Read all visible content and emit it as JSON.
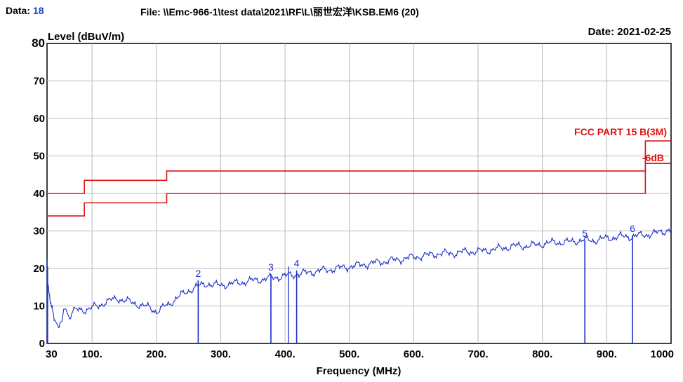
{
  "header": {
    "data_label": "Data:",
    "data_value": "18",
    "file_text": "File: \\\\Emc-966-1\\test data\\2021\\RF\\L\\丽世宏洋\\KSB.EM6  (20)",
    "date_text": "Date: 2021-02-25"
  },
  "colors": {
    "trace": "#1a2fc8",
    "limit": "#e01010",
    "grid": "#b8b8b8",
    "header_value": "#1a3fd0"
  },
  "chart_data": {
    "type": "line",
    "title": "",
    "ylabel": "Level (dBuV/m)",
    "xlabel": "Frequency (MHz)",
    "xlim": [
      30,
      1000
    ],
    "ylim": [
      0,
      80
    ],
    "grid": true,
    "x_ticks": [
      {
        "value": 30,
        "label": "30"
      },
      {
        "value": 100,
        "label": "100."
      },
      {
        "value": 200,
        "label": "200."
      },
      {
        "value": 300,
        "label": "300."
      },
      {
        "value": 400,
        "label": "400."
      },
      {
        "value": 500,
        "label": "500."
      },
      {
        "value": 600,
        "label": "600."
      },
      {
        "value": 700,
        "label": "700."
      },
      {
        "value": 800,
        "label": "800."
      },
      {
        "value": 900,
        "label": "900."
      },
      {
        "value": 1000,
        "label": "1000"
      }
    ],
    "y_ticks": [
      0,
      10,
      20,
      30,
      40,
      50,
      60,
      70,
      80
    ],
    "limit_lines": [
      {
        "x": [
          30,
          88,
          88,
          216,
          216,
          960,
          960,
          1000
        ],
        "y": [
          40,
          40,
          43.5,
          43.5,
          46,
          46,
          54,
          54
        ]
      },
      {
        "x": [
          30,
          88,
          88,
          216,
          216,
          960,
          960,
          1000
        ],
        "y": [
          34,
          34,
          37.5,
          37.5,
          40,
          40,
          48,
          48
        ]
      }
    ],
    "limit_labels": [
      "FCC PART 15 B(3M)",
      "-6dB"
    ],
    "series": [
      {
        "x": [
          30,
          32,
          34,
          36,
          38,
          40,
          42,
          45,
          48,
          50,
          53,
          56,
          60,
          65,
          70,
          80,
          90,
          100,
          110,
          120,
          130,
          140,
          150,
          160,
          170,
          180,
          190,
          200,
          210,
          220,
          230,
          240,
          250,
          260,
          270,
          280,
          290,
          300,
          320,
          340,
          360,
          380,
          400,
          420,
          440,
          460,
          480,
          500,
          520,
          540,
          560,
          580,
          600,
          620,
          640,
          660,
          680,
          700,
          720,
          740,
          760,
          780,
          800,
          820,
          840,
          860,
          880,
          900,
          920,
          940,
          960,
          980,
          1000
        ],
        "y": [
          16,
          15,
          13,
          11,
          9,
          7.5,
          6,
          5,
          4.5,
          5,
          7,
          8.5,
          9,
          7,
          8.5,
          9,
          9,
          9.5,
          10,
          11,
          11.5,
          12,
          11.5,
          11,
          10.5,
          10,
          9.5,
          8.5,
          9.5,
          10.5,
          12,
          13,
          14,
          15,
          15.5,
          16,
          15.5,
          15.5,
          16,
          16.5,
          17,
          17.5,
          18,
          18.5,
          19,
          19.5,
          20,
          20.5,
          21,
          21.5,
          22,
          22.5,
          23,
          23.5,
          24,
          24,
          24.5,
          24.5,
          25,
          25.5,
          26,
          26,
          26.5,
          27,
          27,
          27.5,
          27.5,
          28,
          28.5,
          28.5,
          29,
          29.5,
          30.5
        ]
      }
    ],
    "spikes": [
      {
        "x": 30,
        "y": 22.5
      },
      {
        "x": 31,
        "y": 20.5
      },
      {
        "x": 405,
        "y": 20.5
      }
    ],
    "markers": [
      {
        "label": "2",
        "x": 265,
        "y": 16.8
      },
      {
        "label": "3",
        "x": 378,
        "y": 18.5
      },
      {
        "label": "4",
        "x": 418,
        "y": 19.5
      },
      {
        "label": "5",
        "x": 866,
        "y": 27.5
      },
      {
        "label": "6",
        "x": 940,
        "y": 28.8
      }
    ]
  }
}
